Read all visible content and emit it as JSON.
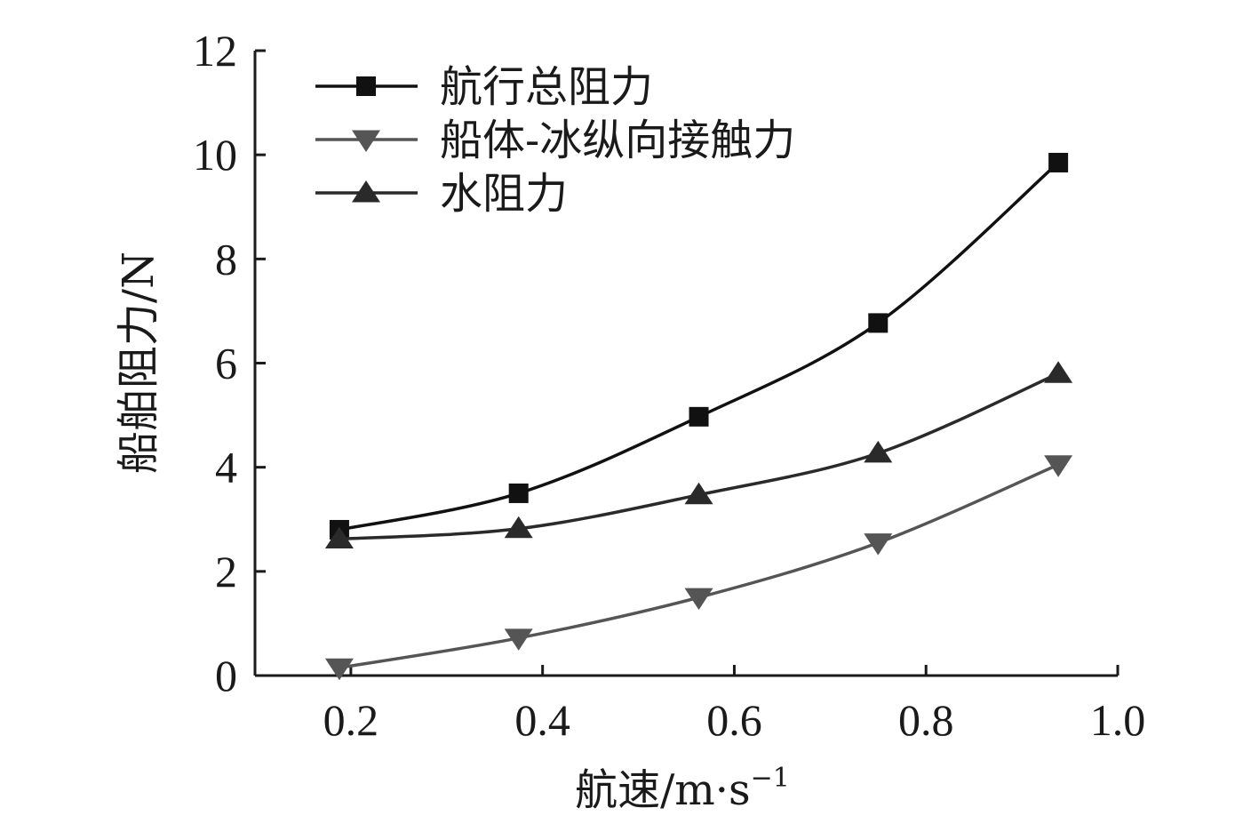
{
  "chart_data": {
    "type": "line",
    "xlabel": "航速/m·s",
    "xlabel_exponent": "−1",
    "ylabel": "船舶阻力/N",
    "xlim": [
      0.1,
      1.0
    ],
    "ylim": [
      0,
      12
    ],
    "xticks": [
      "0.2",
      "0.4",
      "0.6",
      "0.8",
      "1.0"
    ],
    "yticks": [
      "0",
      "2",
      "4",
      "6",
      "8",
      "10",
      "12"
    ],
    "x": [
      0.188,
      0.375,
      0.563,
      0.75,
      0.938
    ],
    "grid": false,
    "legend_position": "top-left",
    "series": [
      {
        "name": "航行总阻力",
        "marker": "square",
        "color": "#111111",
        "values": [
          2.8,
          3.5,
          4.97,
          6.77,
          9.85
        ]
      },
      {
        "name": "船体-冰纵向接触力",
        "marker": "triangle-down",
        "color": "#555555",
        "values": [
          0.15,
          0.72,
          1.5,
          2.55,
          4.05
        ]
      },
      {
        "name": "水阻力",
        "marker": "triangle-up",
        "color": "#2a2a2a",
        "values": [
          2.62,
          2.82,
          3.47,
          4.27,
          5.8
        ]
      }
    ]
  }
}
